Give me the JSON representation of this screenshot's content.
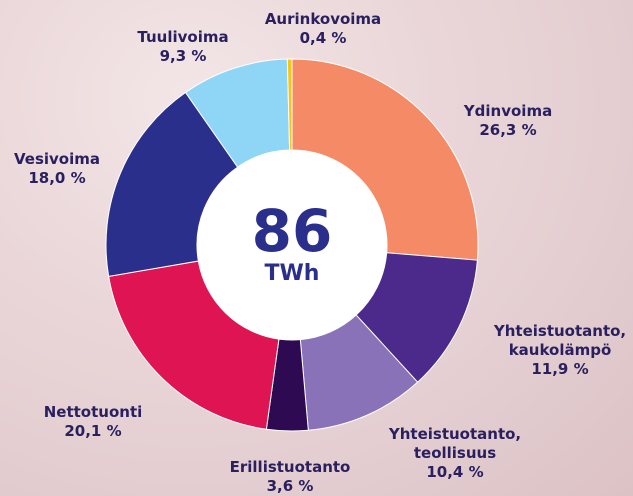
{
  "chart_data": {
    "type": "donut",
    "center_text": "86",
    "center_unit": "TWh",
    "categories": [
      "Ydinvoima",
      "Yhteistuotanto, kaukolämpö",
      "Yhteistuotanto, teollisuus",
      "Erillistuotanto",
      "Nettotuonti",
      "Vesivoima",
      "Tuulivoima",
      "Aurinkovoima"
    ],
    "values": [
      26.3,
      11.9,
      10.4,
      3.6,
      20.1,
      18.0,
      9.3,
      0.4
    ],
    "value_labels": [
      "26,3 %",
      "11,9 %",
      "10,4 %",
      "3,6 %",
      "20,1 %",
      "18,0 %",
      "9,3 %",
      "0,4 %"
    ],
    "colors": [
      "#f58b66",
      "#4b2a8c",
      "#8a72b8",
      "#2e0a52",
      "#df1452",
      "#2a2f8c",
      "#8fd5f5",
      "#f5c518"
    ]
  }
}
